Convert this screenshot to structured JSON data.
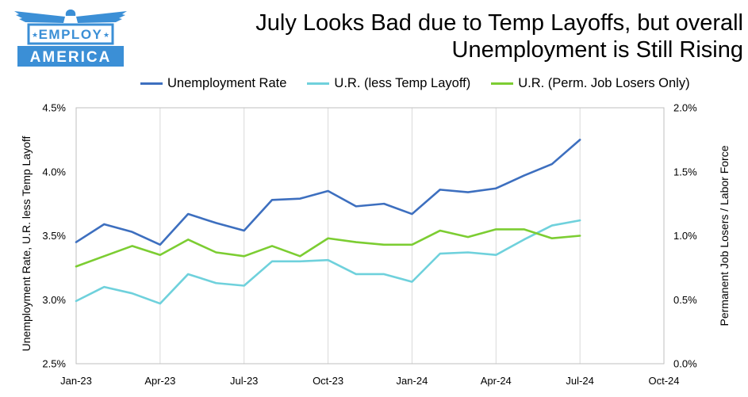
{
  "logo": {
    "line1": "EMPLOY",
    "line2": "AMERICA",
    "color": "#3b8fd6"
  },
  "chart_data": {
    "type": "line",
    "title_line1": "July Looks Bad due to Temp Layoffs, but overall",
    "title_line2": "Unemployment  is Still Rising",
    "x_tick_labels": [
      "Jan-23",
      "Apr-23",
      "Jul-23",
      "Oct-23",
      "Jan-24",
      "Apr-24",
      "Jul-24",
      "Oct-24"
    ],
    "x_months": [
      "Jan-23",
      "Feb-23",
      "Mar-23",
      "Apr-23",
      "May-23",
      "Jun-23",
      "Jul-23",
      "Aug-23",
      "Sep-23",
      "Oct-23",
      "Nov-23",
      "Dec-23",
      "Jan-24",
      "Feb-24",
      "Mar-24",
      "Apr-24",
      "May-24",
      "Jun-24",
      "Jul-24"
    ],
    "x_range_months": [
      0,
      21
    ],
    "left_axis": {
      "label": "Unemployment Rate, U.R. less Temp Layoff",
      "ylim": [
        2.5,
        4.5
      ],
      "ticks": [
        2.5,
        3.0,
        3.5,
        4.0,
        4.5
      ],
      "tick_labels": [
        "2.5%",
        "3.0%",
        "3.5%",
        "4.0%",
        "4.5%"
      ]
    },
    "right_axis": {
      "label": "Permanent Job Losers / Labor Force",
      "ylim": [
        0.0,
        2.0
      ],
      "ticks": [
        0.0,
        0.5,
        1.0,
        1.5,
        2.0
      ],
      "tick_labels": [
        "0.0%",
        "0.5%",
        "1.0%",
        "1.5%",
        "2.0%"
      ]
    },
    "grid": "vertical",
    "legend_position": "top",
    "series": [
      {
        "name": "Unemployment Rate",
        "axis": "left",
        "color": "#3d6fbf",
        "values": [
          3.45,
          3.59,
          3.53,
          3.43,
          3.67,
          3.6,
          3.54,
          3.78,
          3.79,
          3.85,
          3.73,
          3.75,
          3.67,
          3.86,
          3.84,
          3.87,
          3.97,
          4.06,
          4.25
        ]
      },
      {
        "name": "U.R. (less Temp Layoff)",
        "axis": "left",
        "color": "#6fd1dc",
        "values": [
          2.99,
          3.1,
          3.05,
          2.97,
          3.2,
          3.13,
          3.11,
          3.3,
          3.3,
          3.31,
          3.2,
          3.2,
          3.14,
          3.36,
          3.37,
          3.35,
          3.47,
          3.58,
          3.62
        ]
      },
      {
        "name": "U.R. (Perm. Job Losers Only)",
        "axis": "right",
        "color": "#7ccd32",
        "values": [
          0.76,
          0.84,
          0.92,
          0.85,
          0.97,
          0.87,
          0.84,
          0.92,
          0.84,
          0.98,
          0.95,
          0.93,
          0.93,
          1.04,
          0.99,
          1.05,
          1.05,
          0.98,
          1.0
        ]
      }
    ]
  }
}
